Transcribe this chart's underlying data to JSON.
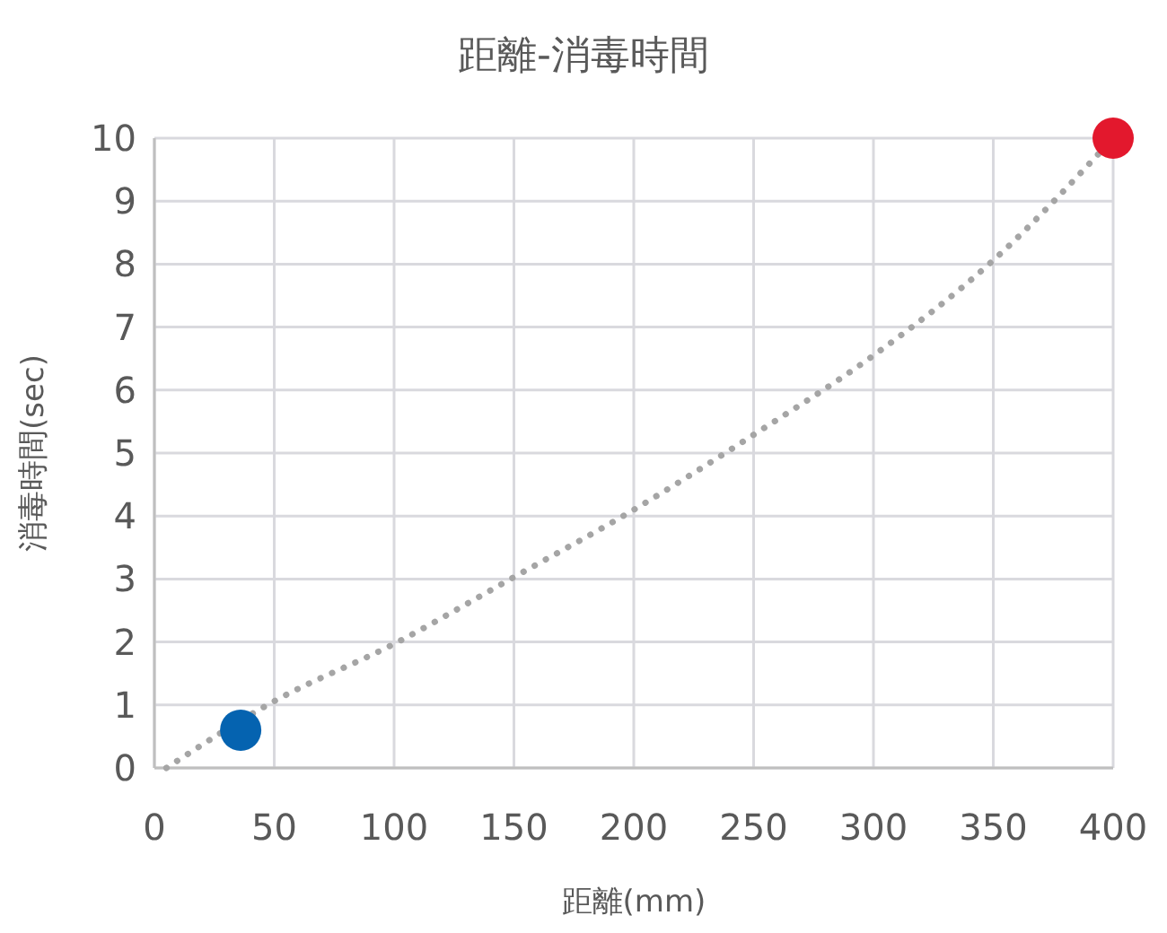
{
  "chart_data": {
    "type": "scatter",
    "title": "距離-消毒時間",
    "xlabel": "距離(mm)",
    "ylabel": "消毒時間(sec)",
    "xlim": [
      0,
      400
    ],
    "xticks": [
      0,
      50,
      100,
      150,
      200,
      250,
      300,
      350,
      400
    ],
    "ylim": [
      0,
      10
    ],
    "yticks": [
      0,
      1,
      2,
      3,
      4,
      5,
      6,
      7,
      8,
      9,
      10
    ],
    "grid": true,
    "marker": "circle",
    "series": [
      {
        "type": "line",
        "color": "#a5a5a5",
        "line_style": "dotted",
        "marker": "none",
        "x": [
          5,
          50,
          100,
          150,
          200,
          250,
          300,
          350,
          400
        ],
        "values": [
          0,
          1.06,
          1.97,
          3.03,
          4.1,
          5.29,
          6.55,
          8.06,
          10
        ]
      },
      {
        "color": "#0563b0",
        "x": [
          36
        ],
        "values": [
          0.6
        ]
      },
      {
        "color": "#e3182d",
        "x": [
          400
        ],
        "values": [
          10
        ]
      }
    ]
  }
}
